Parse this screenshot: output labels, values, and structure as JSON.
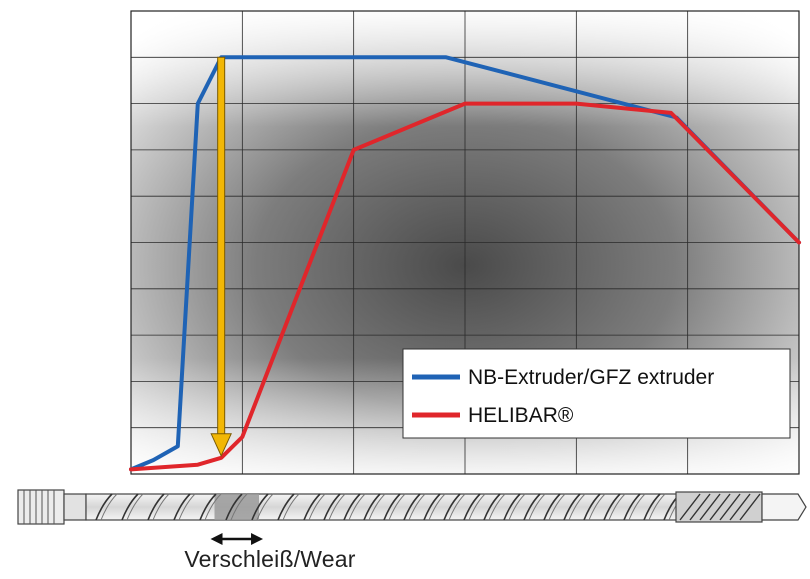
{
  "chart_data": {
    "type": "line",
    "title": "",
    "xlabel": "",
    "ylabel": "",
    "xlim": [
      0,
      6
    ],
    "ylim": [
      0,
      10
    ],
    "grid": true,
    "legend_position": "bottom-right",
    "series": [
      {
        "name": "NB-Extruder/GFZ extruder",
        "color": "#1f63b5",
        "x": [
          0,
          0.2,
          0.42,
          0.6,
          0.81,
          2.83,
          4.9,
          6.0
        ],
        "y": [
          0.1,
          0.3,
          0.6,
          8.0,
          9.0,
          9.0,
          7.7,
          5.0
        ]
      },
      {
        "name": "HELIBAR®",
        "color": "#e0262b",
        "x": [
          0,
          0.6,
          0.81,
          1.0,
          2.0,
          3.0,
          4.0,
          4.85,
          6.0
        ],
        "y": [
          0.1,
          0.2,
          0.35,
          0.8,
          7.0,
          8.0,
          8.0,
          7.8,
          5.0
        ]
      }
    ],
    "annotations": [
      {
        "type": "vertical-arrow",
        "color": "#f2b705",
        "x": 0.81,
        "y_from": 9.0,
        "y_to": 0.35
      }
    ]
  },
  "screw": {
    "wear_label": "Verschleiß/Wear",
    "wear_zone_x": [
      0.75,
      1.15
    ]
  }
}
